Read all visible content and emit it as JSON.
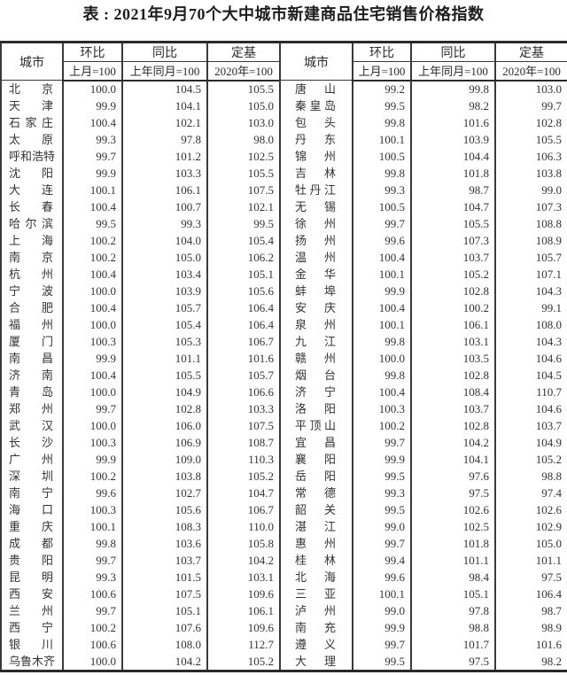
{
  "title": "表 : 2021年9月70个大中城市新建商品住宅销售价格指数",
  "colors": {
    "background": "#ffffff",
    "text": "#2b2b2b",
    "border": "#2a2a2a"
  },
  "table": {
    "headers": {
      "city": "城市",
      "mom": "环比",
      "mom_sub": "上月=100",
      "yoy": "同比",
      "yoy_sub": "上年同月=100",
      "base": "定基",
      "base_sub": "2020年=100"
    },
    "left_rows": [
      {
        "city": "北京",
        "mom": "100.0",
        "yoy": "104.5",
        "base": "105.5"
      },
      {
        "city": "天津",
        "mom": "99.9",
        "yoy": "104.1",
        "base": "105.0"
      },
      {
        "city": "石家庄",
        "mom": "100.4",
        "yoy": "102.1",
        "base": "103.0"
      },
      {
        "city": "太原",
        "mom": "99.3",
        "yoy": "97.8",
        "base": "98.0"
      },
      {
        "city": "呼和浩特",
        "mom": "99.7",
        "yoy": "101.2",
        "base": "102.5"
      },
      {
        "city": "沈阳",
        "mom": "99.9",
        "yoy": "103.3",
        "base": "105.5"
      },
      {
        "city": "大连",
        "mom": "100.1",
        "yoy": "106.1",
        "base": "107.5"
      },
      {
        "city": "长春",
        "mom": "100.4",
        "yoy": "100.7",
        "base": "102.1"
      },
      {
        "city": "哈尔滨",
        "mom": "99.5",
        "yoy": "99.3",
        "base": "99.5"
      },
      {
        "city": "上海",
        "mom": "100.2",
        "yoy": "104.0",
        "base": "105.4"
      },
      {
        "city": "南京",
        "mom": "100.2",
        "yoy": "105.0",
        "base": "106.2"
      },
      {
        "city": "杭州",
        "mom": "100.4",
        "yoy": "103.4",
        "base": "105.1"
      },
      {
        "city": "宁波",
        "mom": "100.0",
        "yoy": "103.9",
        "base": "105.6"
      },
      {
        "city": "合肥",
        "mom": "100.4",
        "yoy": "105.7",
        "base": "106.4"
      },
      {
        "city": "福州",
        "mom": "100.0",
        "yoy": "105.4",
        "base": "106.4"
      },
      {
        "city": "厦门",
        "mom": "100.3",
        "yoy": "105.3",
        "base": "106.7"
      },
      {
        "city": "南昌",
        "mom": "99.9",
        "yoy": "101.1",
        "base": "101.6"
      },
      {
        "city": "济南",
        "mom": "100.4",
        "yoy": "105.5",
        "base": "105.7"
      },
      {
        "city": "青岛",
        "mom": "100.0",
        "yoy": "104.9",
        "base": "106.6"
      },
      {
        "city": "郑州",
        "mom": "99.7",
        "yoy": "102.8",
        "base": "103.3"
      },
      {
        "city": "武汉",
        "mom": "100.0",
        "yoy": "106.0",
        "base": "107.5"
      },
      {
        "city": "长沙",
        "mom": "100.3",
        "yoy": "106.9",
        "base": "108.7"
      },
      {
        "city": "广州",
        "mom": "99.9",
        "yoy": "109.0",
        "base": "110.3"
      },
      {
        "city": "深圳",
        "mom": "100.2",
        "yoy": "103.8",
        "base": "105.2"
      },
      {
        "city": "南宁",
        "mom": "99.6",
        "yoy": "102.7",
        "base": "104.7"
      },
      {
        "city": "海口",
        "mom": "100.3",
        "yoy": "105.6",
        "base": "106.7"
      },
      {
        "city": "重庆",
        "mom": "100.1",
        "yoy": "108.3",
        "base": "110.0"
      },
      {
        "city": "成都",
        "mom": "99.8",
        "yoy": "103.6",
        "base": "105.8"
      },
      {
        "city": "贵阳",
        "mom": "99.7",
        "yoy": "103.7",
        "base": "104.2"
      },
      {
        "city": "昆明",
        "mom": "99.3",
        "yoy": "101.5",
        "base": "103.1"
      },
      {
        "city": "西安",
        "mom": "100.6",
        "yoy": "107.5",
        "base": "109.6"
      },
      {
        "city": "兰州",
        "mom": "99.7",
        "yoy": "105.1",
        "base": "106.1"
      },
      {
        "city": "西宁",
        "mom": "100.2",
        "yoy": "107.6",
        "base": "109.6"
      },
      {
        "city": "银川",
        "mom": "100.6",
        "yoy": "108.0",
        "base": "112.7"
      },
      {
        "city": "乌鲁木齐",
        "mom": "100.0",
        "yoy": "104.2",
        "base": "105.2"
      }
    ],
    "right_rows": [
      {
        "city": "唐山",
        "mom": "99.2",
        "yoy": "99.8",
        "base": "103.0"
      },
      {
        "city": "秦皇岛",
        "mom": "99.5",
        "yoy": "98.2",
        "base": "99.7"
      },
      {
        "city": "包头",
        "mom": "99.8",
        "yoy": "101.6",
        "base": "102.8"
      },
      {
        "city": "丹东",
        "mom": "100.1",
        "yoy": "103.9",
        "base": "105.5"
      },
      {
        "city": "锦州",
        "mom": "100.5",
        "yoy": "104.4",
        "base": "106.3"
      },
      {
        "city": "吉林",
        "mom": "99.8",
        "yoy": "101.8",
        "base": "103.8"
      },
      {
        "city": "牡丹江",
        "mom": "99.3",
        "yoy": "98.7",
        "base": "99.0"
      },
      {
        "city": "无锡",
        "mom": "100.5",
        "yoy": "104.7",
        "base": "107.3"
      },
      {
        "city": "徐州",
        "mom": "99.7",
        "yoy": "105.5",
        "base": "108.8"
      },
      {
        "city": "扬州",
        "mom": "99.6",
        "yoy": "107.3",
        "base": "108.9"
      },
      {
        "city": "温州",
        "mom": "100.4",
        "yoy": "103.7",
        "base": "105.7"
      },
      {
        "city": "金华",
        "mom": "100.1",
        "yoy": "105.2",
        "base": "107.1"
      },
      {
        "city": "蚌埠",
        "mom": "99.9",
        "yoy": "102.8",
        "base": "104.3"
      },
      {
        "city": "安庆",
        "mom": "100.4",
        "yoy": "100.2",
        "base": "99.1"
      },
      {
        "city": "泉州",
        "mom": "100.1",
        "yoy": "106.1",
        "base": "108.0"
      },
      {
        "city": "九江",
        "mom": "99.8",
        "yoy": "103.1",
        "base": "104.3"
      },
      {
        "city": "赣州",
        "mom": "100.0",
        "yoy": "103.5",
        "base": "104.6"
      },
      {
        "city": "烟台",
        "mom": "99.8",
        "yoy": "102.8",
        "base": "104.5"
      },
      {
        "city": "济宁",
        "mom": "100.4",
        "yoy": "108.4",
        "base": "110.7"
      },
      {
        "city": "洛阳",
        "mom": "100.3",
        "yoy": "103.7",
        "base": "104.6"
      },
      {
        "city": "平顶山",
        "mom": "100.2",
        "yoy": "102.8",
        "base": "103.7"
      },
      {
        "city": "宜昌",
        "mom": "99.7",
        "yoy": "104.2",
        "base": "104.9"
      },
      {
        "city": "襄阳",
        "mom": "99.9",
        "yoy": "104.1",
        "base": "105.2"
      },
      {
        "city": "岳阳",
        "mom": "99.5",
        "yoy": "97.6",
        "base": "98.8"
      },
      {
        "city": "常德",
        "mom": "99.3",
        "yoy": "97.5",
        "base": "97.4"
      },
      {
        "city": "韶关",
        "mom": "99.5",
        "yoy": "102.6",
        "base": "102.6"
      },
      {
        "city": "湛江",
        "mom": "99.0",
        "yoy": "102.5",
        "base": "102.9"
      },
      {
        "city": "惠州",
        "mom": "99.7",
        "yoy": "101.8",
        "base": "105.0"
      },
      {
        "city": "桂林",
        "mom": "99.4",
        "yoy": "101.1",
        "base": "101.1"
      },
      {
        "city": "北海",
        "mom": "99.6",
        "yoy": "98.4",
        "base": "97.5"
      },
      {
        "city": "三亚",
        "mom": "100.1",
        "yoy": "105.1",
        "base": "106.4"
      },
      {
        "city": "泸州",
        "mom": "99.0",
        "yoy": "97.8",
        "base": "98.7"
      },
      {
        "city": "南充",
        "mom": "99.9",
        "yoy": "98.8",
        "base": "98.9"
      },
      {
        "city": "遵义",
        "mom": "99.7",
        "yoy": "101.7",
        "base": "101.6"
      },
      {
        "city": "大理",
        "mom": "99.5",
        "yoy": "97.5",
        "base": "98.2"
      }
    ]
  }
}
